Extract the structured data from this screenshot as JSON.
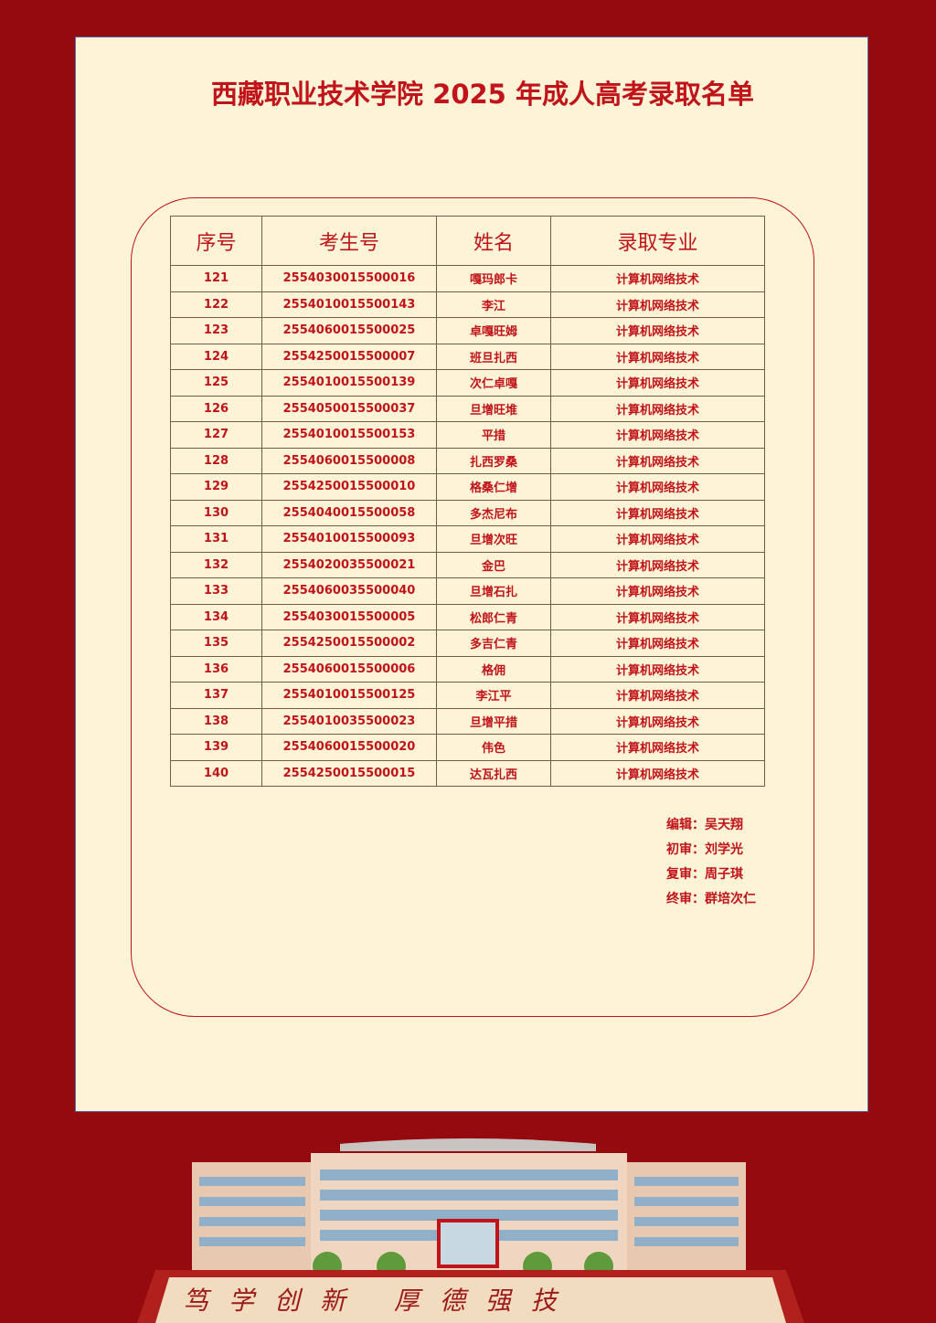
{
  "title": "西藏职业技术学院 2025 年成人高考录取名单",
  "table": {
    "headers": [
      "序号",
      "考生号",
      "姓名",
      "录取专业"
    ],
    "rows": [
      [
        "121",
        "2554030015500016",
        "嘎玛郎卡",
        "计算机网络技术"
      ],
      [
        "122",
        "2554010015500143",
        "李江",
        "计算机网络技术"
      ],
      [
        "123",
        "2554060015500025",
        "卓嘎旺姆",
        "计算机网络技术"
      ],
      [
        "124",
        "2554250015500007",
        "班旦扎西",
        "计算机网络技术"
      ],
      [
        "125",
        "2554010015500139",
        "次仁卓嘎",
        "计算机网络技术"
      ],
      [
        "126",
        "2554050015500037",
        "旦增旺堆",
        "计算机网络技术"
      ],
      [
        "127",
        "2554010015500153",
        "平措",
        "计算机网络技术"
      ],
      [
        "128",
        "2554060015500008",
        "扎西罗桑",
        "计算机网络技术"
      ],
      [
        "129",
        "2554250015500010",
        "格桑仁增",
        "计算机网络技术"
      ],
      [
        "130",
        "2554040015500058",
        "多杰尼布",
        "计算机网络技术"
      ],
      [
        "131",
        "2554010015500093",
        "旦增次旺",
        "计算机网络技术"
      ],
      [
        "132",
        "2554020035500021",
        "金巴",
        "计算机网络技术"
      ],
      [
        "133",
        "2554060035500040",
        "旦增石扎",
        "计算机网络技术"
      ],
      [
        "134",
        "2554030015500005",
        "松郎仁青",
        "计算机网络技术"
      ],
      [
        "135",
        "2554250015500002",
        "多吉仁青",
        "计算机网络技术"
      ],
      [
        "136",
        "2554060015500006",
        "格佣",
        "计算机网络技术"
      ],
      [
        "137",
        "2554010015500125",
        "李江平",
        "计算机网络技术"
      ],
      [
        "138",
        "2554010035500023",
        "旦增平措",
        "计算机网络技术"
      ],
      [
        "139",
        "2554060015500020",
        "伟色",
        "计算机网络技术"
      ],
      [
        "140",
        "2554250015500015",
        "达瓦扎西",
        "计算机网络技术"
      ]
    ]
  },
  "signatures": [
    "编辑：吴天翔",
    "初审：刘学光",
    "复审：周子琪",
    "终审：群培次仁"
  ],
  "banner": {
    "slogan": "笃学创新 厚德强技"
  },
  "colors": {
    "background": "#950a0e",
    "paper": "#fdf3d6",
    "accent": "#c0141a"
  }
}
